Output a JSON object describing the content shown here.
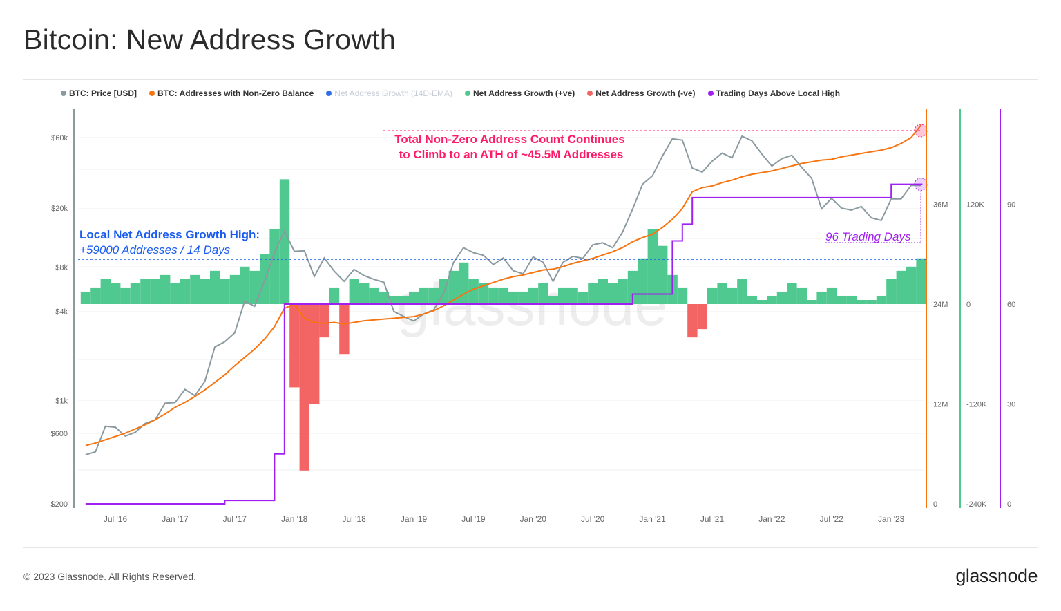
{
  "title": "Bitcoin: New Address Growth",
  "footer": "© 2023 Glassnode. All Rights Reserved.",
  "brand": "glassnode",
  "watermark": "glassnode",
  "legend": [
    {
      "label": "BTC: Price [USD]",
      "color": "#8a9aa0",
      "enabled": true
    },
    {
      "label": "BTC: Addresses with Non-Zero Balance",
      "color": "#f7740f",
      "enabled": true
    },
    {
      "label": "Net Address Growth (14D-EMA)",
      "color": "#2f6fe4",
      "enabled": false
    },
    {
      "label": "Net Address Growth (+ve)",
      "color": "#4fc98f",
      "enabled": true
    },
    {
      "label": "Net Address Growth (-ve)",
      "color": "#f36464",
      "enabled": true
    },
    {
      "label": "Trading Days Above Local High",
      "color": "#a020f0",
      "enabled": true
    }
  ],
  "annotations": {
    "ath_line1": "Total Non-Zero Address Count Continues",
    "ath_line2": "to Climb to an ATH of ~45.5M Addresses",
    "ath_color": "#ff1a66",
    "local_high_title": "Local Net Address Growth High:",
    "local_high_value": "+59000 Addresses / 14 Days",
    "local_high_color": "#1a5cf0",
    "trading_days": "96 Trading Days",
    "trading_days_color": "#a020f0"
  },
  "chart_data": {
    "type": "line",
    "title": "Bitcoin: New Address Growth",
    "x_ticks": [
      "Jul '16",
      "Jan '17",
      "Jul '17",
      "Jan '18",
      "Jul '18",
      "Jan '19",
      "Jul '19",
      "Jan '20",
      "Jul '20",
      "Jan '21",
      "Jul '21",
      "Jan '22",
      "Jul '22",
      "Jan '23"
    ],
    "x_tick_dates": [
      "2016-07",
      "2017-01",
      "2017-07",
      "2018-01",
      "2018-07",
      "2019-01",
      "2019-07",
      "2020-01",
      "2020-07",
      "2021-01",
      "2021-07",
      "2022-01",
      "2022-07",
      "2023-01"
    ],
    "axes": {
      "price": {
        "scale": "log",
        "range": [
          200,
          60000
        ],
        "ticks": [
          {
            "v": 60000,
            "label": "$60k"
          },
          {
            "v": 20000,
            "label": "$20k"
          },
          {
            "v": 8000,
            "label": "$8k"
          },
          {
            "v": 4000,
            "label": "$4k"
          },
          {
            "v": 1000,
            "label": "$1k"
          },
          {
            "v": 600,
            "label": "$600"
          },
          {
            "v": 200,
            "label": "$200"
          }
        ]
      },
      "addresses": {
        "scale": "linear",
        "range": [
          0,
          48000000
        ],
        "ticks": [
          {
            "v": 0,
            "label": "0"
          },
          {
            "v": 12000000,
            "label": "12M"
          },
          {
            "v": 24000000,
            "label": "24M"
          },
          {
            "v": 36000000,
            "label": "36M"
          }
        ]
      },
      "net_growth": {
        "scale": "linear",
        "range": [
          -240000,
          240000
        ],
        "ticks": [
          {
            "v": -240000,
            "label": "-240K"
          },
          {
            "v": -120000,
            "label": "-120K"
          },
          {
            "v": 0,
            "label": "0"
          },
          {
            "v": 120000,
            "label": "120K"
          }
        ]
      },
      "trading_days": {
        "scale": "linear",
        "range": [
          0,
          120
        ],
        "ticks": [
          {
            "v": 0,
            "label": "0"
          },
          {
            "v": 30,
            "label": "30"
          },
          {
            "v": 60,
            "label": "60"
          },
          {
            "v": 90,
            "label": "90"
          }
        ]
      }
    },
    "grid": true,
    "legend_position": "top",
    "reference_lines": {
      "net_growth_local_high": 59000,
      "address_ath": 45500000,
      "trading_days": 96
    },
    "dates": [
      "2016-04",
      "2016-05",
      "2016-06",
      "2016-07",
      "2016-08",
      "2016-09",
      "2016-10",
      "2016-11",
      "2016-12",
      "2017-01",
      "2017-02",
      "2017-03",
      "2017-04",
      "2017-05",
      "2017-06",
      "2017-07",
      "2017-08",
      "2017-09",
      "2017-10",
      "2017-11",
      "2017-12",
      "2018-01",
      "2018-02",
      "2018-03",
      "2018-04",
      "2018-05",
      "2018-06",
      "2018-07",
      "2018-08",
      "2018-09",
      "2018-10",
      "2018-11",
      "2018-12",
      "2019-01",
      "2019-02",
      "2019-03",
      "2019-04",
      "2019-05",
      "2019-06",
      "2019-07",
      "2019-08",
      "2019-09",
      "2019-10",
      "2019-11",
      "2019-12",
      "2020-01",
      "2020-02",
      "2020-03",
      "2020-04",
      "2020-05",
      "2020-06",
      "2020-07",
      "2020-08",
      "2020-09",
      "2020-10",
      "2020-11",
      "2020-12",
      "2021-01",
      "2021-02",
      "2021-03",
      "2021-04",
      "2021-05",
      "2021-06",
      "2021-07",
      "2021-08",
      "2021-09",
      "2021-10",
      "2021-11",
      "2021-12",
      "2022-01",
      "2022-02",
      "2022-03",
      "2022-04",
      "2022-05",
      "2022-06",
      "2022-07",
      "2022-08",
      "2022-09",
      "2022-10",
      "2022-11",
      "2022-12",
      "2023-01",
      "2023-02",
      "2023-03",
      "2023-04"
    ],
    "series": [
      {
        "name": "BTC: Price [USD]",
        "axis": "price",
        "color": "#8a9aa0",
        "values": [
          430,
          450,
          670,
          660,
          575,
          610,
          700,
          740,
          960,
          970,
          1190,
          1080,
          1350,
          2300,
          2500,
          2870,
          4700,
          4340,
          6450,
          10000,
          14000,
          10200,
          10300,
          6900,
          9200,
          7500,
          6400,
          7700,
          7000,
          6600,
          6300,
          4000,
          3700,
          3450,
          3850,
          4100,
          5300,
          8600,
          10800,
          10000,
          9600,
          8300,
          9200,
          7550,
          7200,
          9350,
          8600,
          6400,
          8600,
          9450,
          9150,
          11300,
          11650,
          10800,
          13800,
          19700,
          29000,
          33100,
          45000,
          58800,
          57700,
          37300,
          35000,
          41500,
          47100,
          43800,
          61300,
          57000,
          46300,
          38500,
          43200,
          45500,
          37700,
          31800,
          19800,
          23300,
          20000,
          19400,
          20500,
          17200,
          16500,
          23100,
          23100,
          28500,
          28500
        ]
      },
      {
        "name": "BTC: Addresses with Non-Zero Balance",
        "axis": "addresses",
        "color": "#f7740f",
        "values": [
          7000000.0,
          7300000.0,
          7700000.0,
          8100000.0,
          8500000.0,
          9000000.0,
          9500000.0,
          10100000.0,
          10800000.0,
          11600000.0,
          12200000.0,
          12900000.0,
          13700000.0,
          14600000.0,
          15500000.0,
          16600000.0,
          17600000.0,
          18600000.0,
          19800000.0,
          21300000.0,
          23500000.0,
          24000000.0,
          22300000.0,
          21800000.0,
          21700000.0,
          21800000.0,
          21600000.0,
          21800000.0,
          22000000.0,
          22100000.0,
          22200000.0,
          22300000.0,
          22400000.0,
          22500000.0,
          22800000.0,
          23200000.0,
          23800000.0,
          24500000.0,
          25200000.0,
          25800000.0,
          26200000.0,
          26600000.0,
          27000000.0,
          27300000.0,
          27500000.0,
          27800000.0,
          28100000.0,
          28200000.0,
          28500000.0,
          28900000.0,
          29200000.0,
          29500000.0,
          29900000.0,
          30300000.0,
          30800000.0,
          31500000.0,
          32000000.0,
          32400000.0,
          33200000.0,
          34200000.0,
          35500000.0,
          37500000.0,
          38000000.0,
          38200000.0,
          38600000.0,
          38900000.0,
          39300000.0,
          39600000.0,
          39800000.0,
          40000000.0,
          40300000.0,
          40600000.0,
          40900000.0,
          41100000.0,
          41300000.0,
          41400000.0,
          41700000.0,
          41900000.0,
          42100000.0,
          42300000.0,
          42500000.0,
          42800000.0,
          43300000.0,
          44000000.0,
          45500000.0
        ]
      },
      {
        "name": "Net Address Growth",
        "axis": "net_growth",
        "positive_color": "#4fc98f",
        "negative_color": "#f36464",
        "values": [
          15000,
          20000,
          30000,
          25000,
          20000,
          25000,
          30000,
          30000,
          35000,
          25000,
          30000,
          35000,
          30000,
          40000,
          30000,
          35000,
          45000,
          40000,
          60000,
          90000,
          150000,
          -100000,
          -200000,
          -120000,
          -40000,
          20000,
          -60000,
          30000,
          25000,
          20000,
          15000,
          10000,
          10000,
          15000,
          20000,
          20000,
          30000,
          40000,
          50000,
          30000,
          25000,
          20000,
          20000,
          15000,
          15000,
          20000,
          25000,
          10000,
          20000,
          20000,
          15000,
          25000,
          30000,
          25000,
          30000,
          40000,
          55000,
          90000,
          70000,
          35000,
          20000,
          -40000,
          -30000,
          20000,
          25000,
          20000,
          30000,
          10000,
          5000,
          10000,
          15000,
          25000,
          20000,
          5000,
          15000,
          20000,
          10000,
          10000,
          5000,
          5000,
          10000,
          30000,
          40000,
          45000,
          55000
        ]
      },
      {
        "name": "Trading Days Above Local High",
        "axis": "trading_days",
        "color": "#a020f0",
        "values": [
          0,
          0,
          0,
          0,
          0,
          0,
          0,
          0,
          0,
          0,
          0,
          0,
          0,
          0,
          1,
          1,
          1,
          1,
          1,
          15,
          60,
          60,
          60,
          60,
          60,
          60,
          60,
          60,
          60,
          60,
          60,
          60,
          60,
          60,
          60,
          60,
          60,
          60,
          60,
          60,
          60,
          60,
          60,
          60,
          60,
          60,
          60,
          60,
          60,
          60,
          60,
          60,
          60,
          60,
          60,
          63,
          63,
          63,
          63,
          79,
          84,
          92,
          92,
          92,
          92,
          92,
          92,
          92,
          92,
          92,
          92,
          92,
          92,
          92,
          92,
          92,
          92,
          92,
          92,
          92,
          92,
          96,
          96,
          96,
          96
        ]
      }
    ]
  }
}
